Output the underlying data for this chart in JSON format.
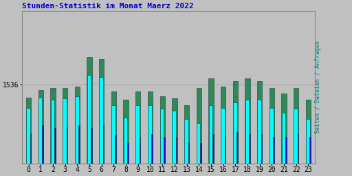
{
  "title": "Stunden-Statistik im Monat Maerz 2022",
  "title_color": "#0000CC",
  "ylabel": "Seiten / Dateien / Anfragen",
  "ylabel_color": "#008080",
  "background_color": "#C0C0C0",
  "plot_bg_color": "#C0C0C0",
  "bar_cyan_color": "#00FFFF",
  "bar_green_color": "#2E8B57",
  "bar_blue_color": "#0000CD",
  "bar_border_color": "#1A3A3A",
  "hours": [
    0,
    1,
    2,
    3,
    4,
    5,
    6,
    7,
    8,
    9,
    10,
    11,
    12,
    13,
    14,
    15,
    16,
    17,
    18,
    19,
    20,
    21,
    22,
    23
  ],
  "ytick_label": "1536",
  "ymax": 1680,
  "ymin": 1380,
  "ytick_val": 1536,
  "cyan_values": [
    1490,
    1510,
    1505,
    1508,
    1512,
    1555,
    1550,
    1495,
    1470,
    1495,
    1495,
    1488,
    1484,
    1468,
    1460,
    1495,
    1490,
    1500,
    1505,
    1505,
    1490,
    1480,
    1488,
    1468
  ],
  "green_values": [
    1510,
    1525,
    1528,
    1528,
    1532,
    1590,
    1585,
    1522,
    1505,
    1522,
    1522,
    1512,
    1508,
    1495,
    1528,
    1548,
    1532,
    1542,
    1548,
    1542,
    1528,
    1518,
    1528,
    1505
  ],
  "blue_values": [
    1440,
    1455,
    1450,
    1452,
    1455,
    1450,
    1455,
    1435,
    1420,
    1432,
    1438,
    1432,
    1432,
    1420,
    1420,
    1438,
    1435,
    1442,
    1438,
    1438,
    1432,
    1432,
    1438,
    1432
  ],
  "figsize": [
    5.12,
    2.56
  ],
  "dpi": 100
}
